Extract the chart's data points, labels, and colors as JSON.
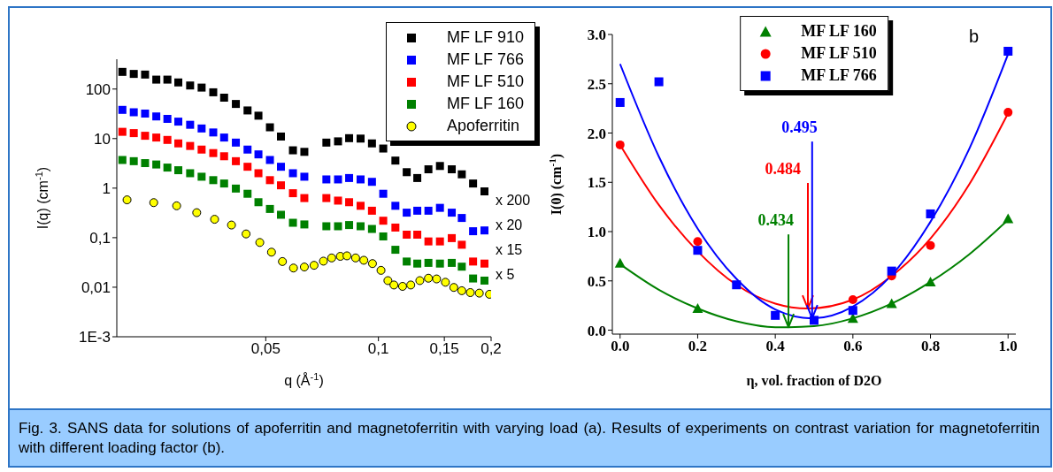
{
  "chart_data": [
    {
      "type": "scatter",
      "xlabel": "q (Å$^{-1}$)",
      "ylabel": "I(q) (cm$^{-1}$)",
      "log": "xy",
      "xlim": [
        0.02,
        0.2
      ],
      "ylim": [
        0.001,
        400
      ],
      "xticks": [
        {
          "value": 0.05,
          "label": "0,05"
        },
        {
          "value": 0.1,
          "label": "0,1"
        },
        {
          "value": 0.15,
          "label": "0,15"
        },
        {
          "value": 0.2,
          "label": "0,2"
        }
      ],
      "yticks": [
        {
          "value": 0.001,
          "label": "1E-3"
        },
        {
          "value": 0.01,
          "label": "0,01"
        },
        {
          "value": 0.1,
          "label": "0,1"
        },
        1,
        10,
        100
      ],
      "legend": "top right",
      "series": [
        {
          "name": "MF LF 910",
          "color": "#000000",
          "marker": "square",
          "x": [
            0.0207,
            0.0222,
            0.0238,
            0.0255,
            0.0273,
            0.0292,
            0.0314,
            0.0337,
            0.0362,
            0.0387,
            0.0416,
            0.0447,
            0.0478,
            0.0513,
            0.0549,
            0.0591,
            0.0634,
            0.0726,
            0.078,
            0.0835,
            0.0896,
            0.0961,
            0.103,
            0.111,
            0.119,
            0.127,
            0.136,
            0.146,
            0.157,
            0.167,
            0.179,
            0.192
          ],
          "values": [
            222,
            202,
            196,
            155,
            155,
            136,
            118,
            107,
            86,
            67,
            50,
            37,
            29,
            16.9,
            11,
            5.8,
            5.4,
            8.3,
            8.8,
            10.2,
            10,
            8.0,
            6.3,
            3.6,
            2.1,
            1.6,
            2.4,
            2.8,
            2.4,
            1.9,
            1.24,
            0.86
          ]
        },
        {
          "name": "MF LF 766",
          "color": "#0000ff",
          "marker": "square",
          "x": [
            0.0207,
            0.0222,
            0.0238,
            0.0255,
            0.0273,
            0.0292,
            0.0314,
            0.0337,
            0.0362,
            0.0387,
            0.0416,
            0.0447,
            0.0478,
            0.0513,
            0.0549,
            0.0591,
            0.0634,
            0.0726,
            0.078,
            0.0835,
            0.0896,
            0.0961,
            0.103,
            0.111,
            0.119,
            0.127,
            0.136,
            0.146,
            0.157,
            0.167,
            0.179,
            0.192
          ],
          "values": [
            38,
            34,
            32,
            28,
            25,
            22,
            19,
            16,
            13.3,
            10.5,
            8.3,
            6.0,
            4.8,
            3.7,
            2.7,
            2.0,
            1.7,
            1.5,
            1.5,
            1.6,
            1.5,
            1.34,
            0.77,
            0.44,
            0.32,
            0.35,
            0.35,
            0.4,
            0.32,
            0.25,
            0.135,
            0.14
          ]
        },
        {
          "name": "MF LF 510",
          "color": "#ff0000",
          "marker": "square",
          "x": [
            0.0207,
            0.0222,
            0.0238,
            0.0255,
            0.0273,
            0.0292,
            0.0314,
            0.0337,
            0.0362,
            0.0387,
            0.0416,
            0.0447,
            0.0478,
            0.0513,
            0.0549,
            0.0591,
            0.0634,
            0.0726,
            0.078,
            0.0835,
            0.0896,
            0.0961,
            0.103,
            0.111,
            0.119,
            0.127,
            0.136,
            0.146,
            0.157,
            0.167,
            0.179,
            0.192
          ],
          "values": [
            13.7,
            12.9,
            11.4,
            10.5,
            9.4,
            8.0,
            7.1,
            6.0,
            5.1,
            4.4,
            3.5,
            2.7,
            2.0,
            1.45,
            1.14,
            0.79,
            0.63,
            0.63,
            0.56,
            0.52,
            0.44,
            0.35,
            0.22,
            0.16,
            0.115,
            0.115,
            0.084,
            0.084,
            0.098,
            0.072,
            0.033,
            0.03
          ]
        },
        {
          "name": "MF LF 160",
          "color": "#008000",
          "marker": "square",
          "x": [
            0.0207,
            0.0222,
            0.0238,
            0.0255,
            0.0273,
            0.0292,
            0.0314,
            0.0337,
            0.0362,
            0.0387,
            0.0416,
            0.0447,
            0.0478,
            0.0513,
            0.0549,
            0.0591,
            0.0634,
            0.0726,
            0.078,
            0.0835,
            0.0896,
            0.0961,
            0.103,
            0.111,
            0.119,
            0.127,
            0.136,
            0.146,
            0.157,
            0.167,
            0.179,
            0.192
          ],
          "values": [
            3.7,
            3.5,
            3.2,
            3.0,
            2.6,
            2.3,
            2.0,
            1.7,
            1.45,
            1.24,
            0.98,
            0.77,
            0.52,
            0.38,
            0.29,
            0.2,
            0.185,
            0.17,
            0.17,
            0.18,
            0.17,
            0.15,
            0.106,
            0.057,
            0.033,
            0.03,
            0.031,
            0.03,
            0.031,
            0.026,
            0.015,
            0.0136
          ]
        },
        {
          "name": "Apoferritin",
          "color": "#ffff00",
          "marker": "circle",
          "x": [
            0.0213,
            0.0251,
            0.0289,
            0.0327,
            0.0365,
            0.0405,
            0.0443,
            0.0482,
            0.0518,
            0.0554,
            0.0593,
            0.0634,
            0.0673,
            0.0713,
            0.075,
            0.0791,
            0.0824,
            0.0869,
            0.0914,
            0.0964,
            0.1016,
            0.106,
            0.11,
            0.116,
            0.122,
            0.129,
            0.136,
            0.143,
            0.151,
            0.159,
            0.167,
            0.176,
            0.186,
            0.198
          ],
          "values": [
            0.58,
            0.51,
            0.44,
            0.32,
            0.235,
            0.18,
            0.119,
            0.08,
            0.051,
            0.033,
            0.0244,
            0.0256,
            0.0277,
            0.0336,
            0.039,
            0.042,
            0.043,
            0.039,
            0.035,
            0.03,
            0.0219,
            0.0136,
            0.0111,
            0.0104,
            0.0111,
            0.0136,
            0.0152,
            0.0147,
            0.0126,
            0.0099,
            0.0085,
            0.0078,
            0.0076,
            0.0072
          ]
        }
      ],
      "annotations": [
        "x 200",
        "x 20",
        "x 15",
        "x 5"
      ]
    },
    {
      "type": "scatter",
      "xlabel": "η, vol. fraction of D2O",
      "ylabel": "I(0) (cm$^{-1}$)",
      "xlim": [
        -0.02,
        1.02
      ],
      "ylim": [
        -0.04,
        3.0
      ],
      "xticks": [
        {
          "value": 0,
          "label": "0.0"
        },
        0.2,
        0.4,
        0.6,
        0.8,
        {
          "value": 1,
          "label": "1.0"
        }
      ],
      "yticks": [
        {
          "value": 0,
          "label": "0.0"
        },
        0.5,
        {
          "value": 1,
          "label": "1.0"
        },
        1.5,
        {
          "value": 2,
          "label": "2.0"
        },
        2.5,
        {
          "value": 3,
          "label": "3.0"
        }
      ],
      "legend": "top",
      "series": [
        {
          "name": "MF LF 160",
          "color": "#008000",
          "marker": "triangle",
          "x": [
            0,
            0.2,
            0.6,
            0.7,
            0.8,
            1.0
          ],
          "values": [
            0.68,
            0.22,
            0.12,
            0.27,
            0.49,
            1.13
          ]
        },
        {
          "name": "MF LF 510",
          "color": "#ff0000",
          "marker": "circle",
          "x": [
            0,
            0.2,
            0.6,
            0.7,
            0.8,
            1.0
          ],
          "values": [
            1.88,
            0.9,
            0.31,
            0.55,
            0.86,
            2.21
          ]
        },
        {
          "name": "MF LF 766",
          "color": "#0000ff",
          "marker": "square",
          "x": [
            0,
            0.1,
            0.2,
            0.3,
            0.4,
            0.5,
            0.6,
            0.7,
            0.8,
            1.0
          ],
          "values": [
            2.31,
            2.52,
            0.81,
            0.46,
            0.15,
            0.1,
            0.2,
            0.6,
            1.18,
            2.83
          ]
        },
        {
          "type": "line",
          "color": "#008000",
          "x": [
            0,
            0.1,
            0.2,
            0.3,
            0.4,
            0.434,
            0.5,
            0.6,
            0.7,
            0.8,
            0.9,
            1.0
          ],
          "values": [
            0.67,
            0.41,
            0.22,
            0.09,
            0.03,
            0.03,
            0.04,
            0.12,
            0.27,
            0.49,
            0.77,
            1.12
          ]
        },
        {
          "type": "line",
          "color": "#ff0000",
          "x": [
            0,
            0.1,
            0.2,
            0.3,
            0.4,
            0.484,
            0.6,
            0.7,
            0.8,
            0.9,
            1.0
          ],
          "values": [
            1.88,
            1.27,
            0.8,
            0.46,
            0.27,
            0.22,
            0.31,
            0.55,
            0.93,
            1.48,
            2.2
          ]
        },
        {
          "type": "line",
          "color": "#0000ff",
          "x": [
            0,
            0.1,
            0.2,
            0.3,
            0.4,
            0.495,
            0.6,
            0.7,
            0.8,
            0.9,
            1.0
          ],
          "values": [
            2.7,
            1.76,
            1.03,
            0.52,
            0.21,
            0.12,
            0.24,
            0.56,
            1.1,
            1.84,
            2.8
          ]
        }
      ],
      "annotations": [
        {
          "text": "0.434",
          "x": 0.434,
          "y": 0.03
        },
        {
          "text": "0.484",
          "x": 0.484,
          "y": 0.22
        },
        {
          "text": "0.495",
          "x": 0.495,
          "y": 0.12
        },
        "b",
        "Fig. 3. SANS data for solutions of apoferritin and magnetoferritin with varying load (a). Results of experiments on contrast variation for magnetoferritin with different loading factor (b)."
      ]
    }
  ]
}
